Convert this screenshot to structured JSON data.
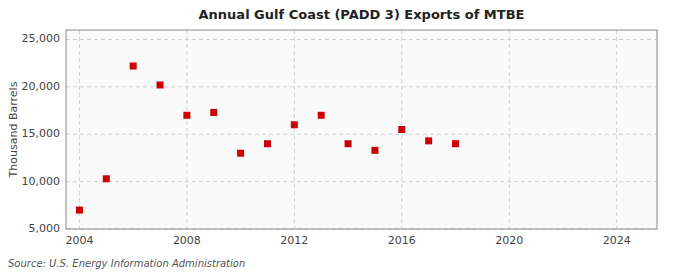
{
  "chart_data": {
    "type": "scatter",
    "title": "Annual Gulf Coast (PADD 3) Exports of MTBE",
    "ylabel": "Thousand Barrels",
    "annotations": [
      "Source: U.S. Energy Information Administration"
    ],
    "x": [
      2004,
      2005,
      2006,
      2007,
      2008,
      2009,
      2010,
      2011,
      2012,
      2013,
      2014,
      2015,
      2016,
      2017,
      2018
    ],
    "values": [
      7000,
      10300,
      22200,
      20200,
      17000,
      17300,
      13000,
      14000,
      16000,
      17000,
      14000,
      13300,
      15500,
      14300,
      14000
    ],
    "color": "#cc0000",
    "marker": "square",
    "xlim": [
      2003.5,
      2025.5
    ],
    "ylim": [
      5000,
      26000
    ],
    "xticks": [
      2004,
      2008,
      2012,
      2016,
      2020,
      2024
    ],
    "yticks": [
      {
        "value": 5000,
        "label": "5,000"
      },
      {
        "value": 10000,
        "label": "10,000"
      },
      {
        "value": 15000,
        "label": "15,000"
      },
      {
        "value": 20000,
        "label": "20,000"
      },
      {
        "value": 25000,
        "label": "25,000"
      }
    ],
    "grid": true
  }
}
